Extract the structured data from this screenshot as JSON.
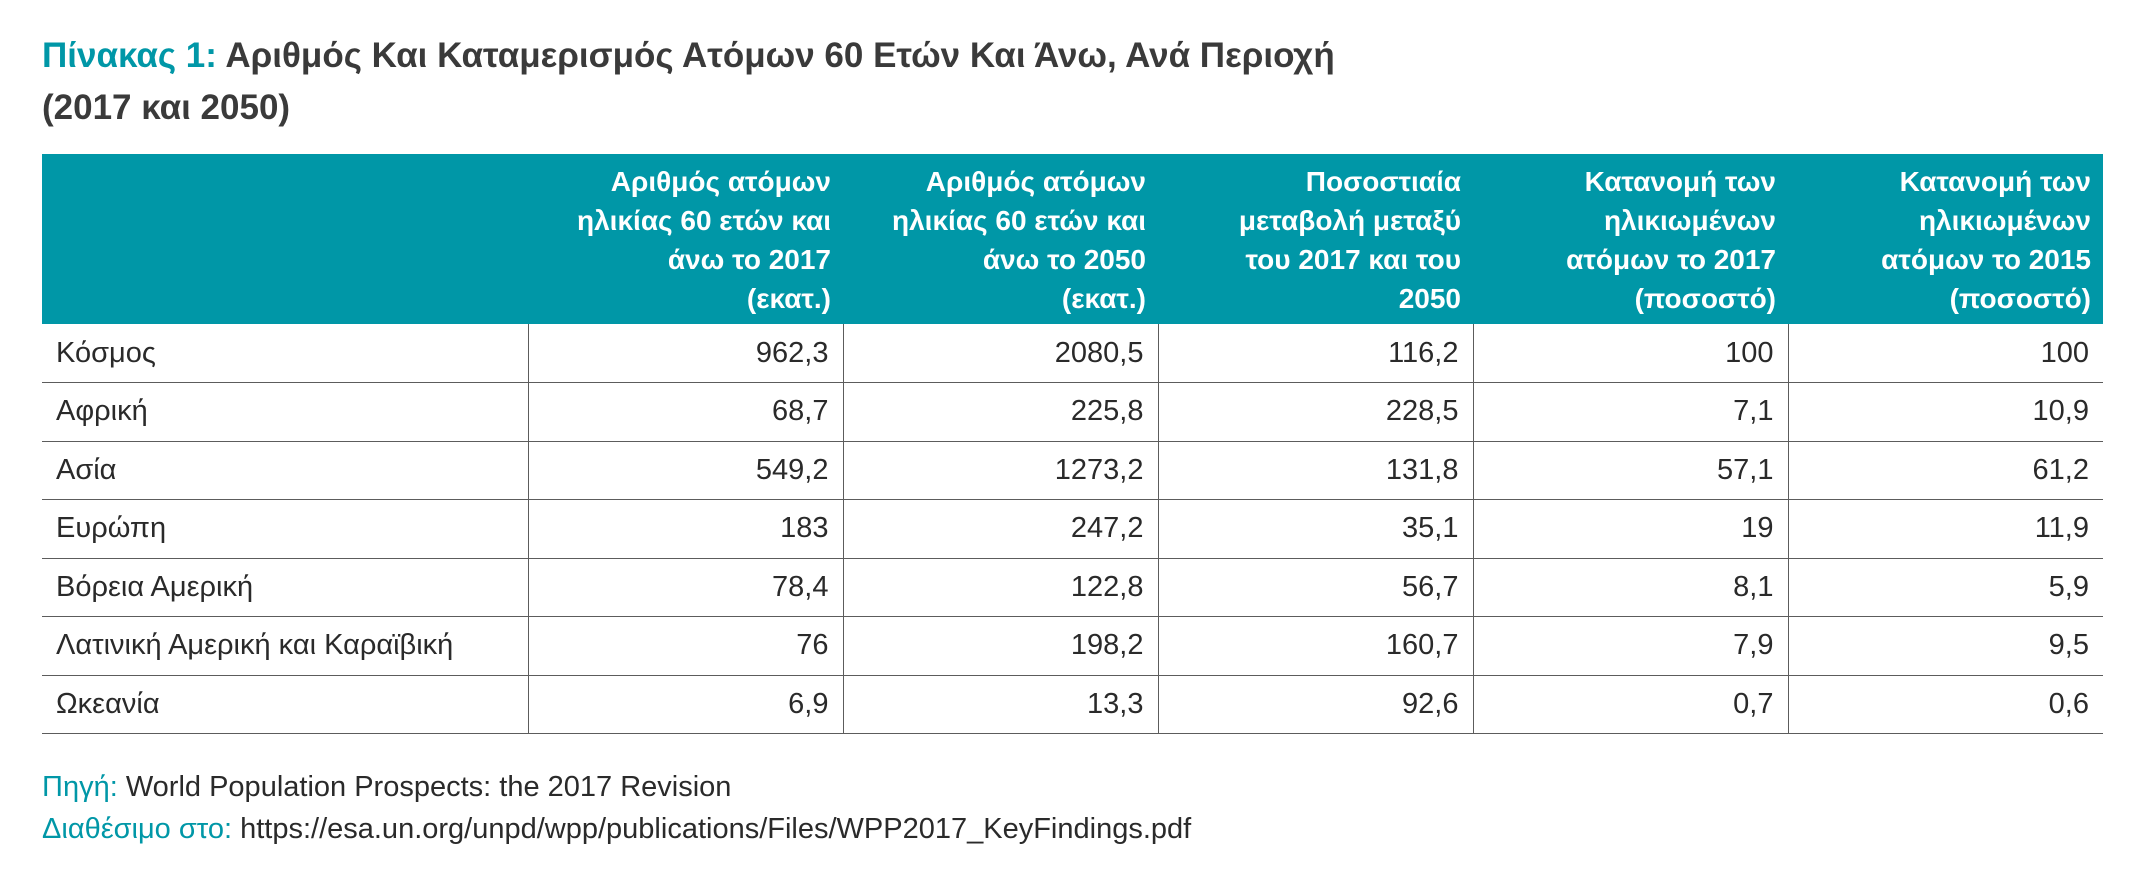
{
  "title": {
    "label": "Πίνακας 1:",
    "text": "Αριθμός Και Καταμερισμός Ατόμων 60 Ετών Και Άνω, Ανά Περιοχή",
    "subtext": "(2017 και 2050)"
  },
  "table": {
    "headers": [
      "",
      "Αριθμός ατόμων ηλικίας 60 ετών και άνω το 2017 (εκατ.)",
      "Αριθμός ατόμων ηλικίας 60 ετών και άνω το 2050 (εκατ.)",
      "Ποσοστιαία μεταβολή μεταξύ του 2017 και του 2050",
      "Κατανομή των ηλικιωμένων ατόμων το 2017 (ποσοστό)",
      "Κατανομή των ηλικιωμένων ατόμων το 2015 (ποσοστό)"
    ],
    "header_lines": [
      [],
      [
        "Αριθμός ατόμων",
        "ηλικίας 60 ετών και",
        "άνω το 2017",
        "(εκατ.)"
      ],
      [
        "Αριθμός ατόμων",
        "ηλικίας 60 ετών και",
        "άνω το 2050",
        "(εκατ.)"
      ],
      [
        "Ποσοστιαία",
        "μεταβολή μεταξύ",
        "του 2017 και του",
        "2050"
      ],
      [
        "Κατανομή των",
        "ηλικιωμένων",
        "ατόμων το 2017",
        "(ποσοστό)"
      ],
      [
        "Κατανομή των",
        "ηλικιωμένων",
        "ατόμων το 2015",
        "(ποσοστό)"
      ]
    ],
    "rows": [
      [
        "Κόσμος",
        "962,3",
        "2080,5",
        "116,2",
        "100",
        "100"
      ],
      [
        "Αφρική",
        "68,7",
        "225,8",
        "228,5",
        "7,1",
        "10,9"
      ],
      [
        "Ασία",
        "549,2",
        "1273,2",
        "131,8",
        "57,1",
        "61,2"
      ],
      [
        "Ευρώπη",
        "183",
        "247,2",
        "35,1",
        "19",
        "11,9"
      ],
      [
        "Βόρεια Αμερική",
        "78,4",
        "122,8",
        "56,7",
        "8,1",
        "5,9"
      ],
      [
        "Λατινική Αμερική και Καραϊβική",
        "76",
        "198,2",
        "160,7",
        "7,9",
        "9,5"
      ],
      [
        "Ωκεανία",
        "6,9",
        "13,3",
        "92,6",
        "0,7",
        "0,6"
      ]
    ]
  },
  "source": {
    "label": "Πηγή:",
    "text": "World Population Prospects: the 2017 Revision",
    "available_label": "Διαθέσιμο στο:",
    "url": "https://esa.un.org/unpd/wpp/publications/Files/WPP2017_KeyFindings.pdf"
  },
  "colors": {
    "accent": "#0097a7",
    "header_text": "#ffffff",
    "body_text": "#2a2a2a",
    "rule": "#5c5c5c"
  }
}
